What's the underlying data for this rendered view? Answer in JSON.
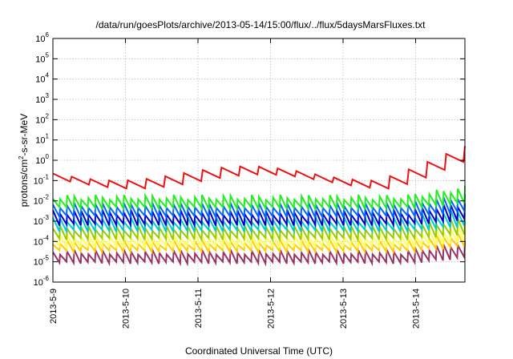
{
  "chart_data": {
    "type": "line",
    "title": "/data/run/goesPlots/archive/2013-05-14/15:00/flux/../flux/5daysMarsFluxes.txt",
    "xlabel": "Coordinated Universal Time (UTC)",
    "ylabel_parts": {
      "prefix": "protons/cm",
      "exponent": "2",
      "suffix": "-s-sr-MeV"
    },
    "yscale": "log",
    "ylim_exponents": [
      -6,
      6
    ],
    "y_tick_base": "10",
    "y_tick_exponents": [
      "6",
      "5",
      "4",
      "3",
      "2",
      "1",
      "0",
      "-1",
      "-2",
      "-3",
      "-4",
      "-5",
      "-6"
    ],
    "xlim": [
      "2013-05-09",
      "2013-05-14 15:00"
    ],
    "x_ticks": [
      "2013-5-9",
      "2013-5-10",
      "2013-5-11",
      "2013-5-12",
      "2013-5-13",
      "2013-5-14"
    ],
    "grid": true,
    "legend": "none",
    "series": [
      {
        "color": "#993366",
        "low": 8e-06,
        "high": 4e-05,
        "cycles": 58
      },
      {
        "color": "#ffcc00",
        "low": 3e-05,
        "high": 0.00012,
        "cycles": 58
      },
      {
        "color": "#ffff55",
        "low": 5e-05,
        "high": 0.00025,
        "cycles": 58
      },
      {
        "color": "#99cc00",
        "low": 0.00012,
        "high": 0.0006,
        "cycles": 58
      },
      {
        "color": "#00cccc",
        "low": 0.0003,
        "high": 0.0016,
        "cycles": 58
      },
      {
        "color": "#0000cc",
        "low": 0.0006,
        "high": 0.0035,
        "cycles": 58
      },
      {
        "color": "#0066ff",
        "low": 0.0015,
        "high": 0.008,
        "cycles": 58
      },
      {
        "color": "#22ee22",
        "low": 0.004,
        "high": 0.02,
        "cycles": 58
      },
      {
        "color": "#ee1111",
        "low": 0.05,
        "high": 1.3,
        "cycles": 22
      }
    ]
  }
}
